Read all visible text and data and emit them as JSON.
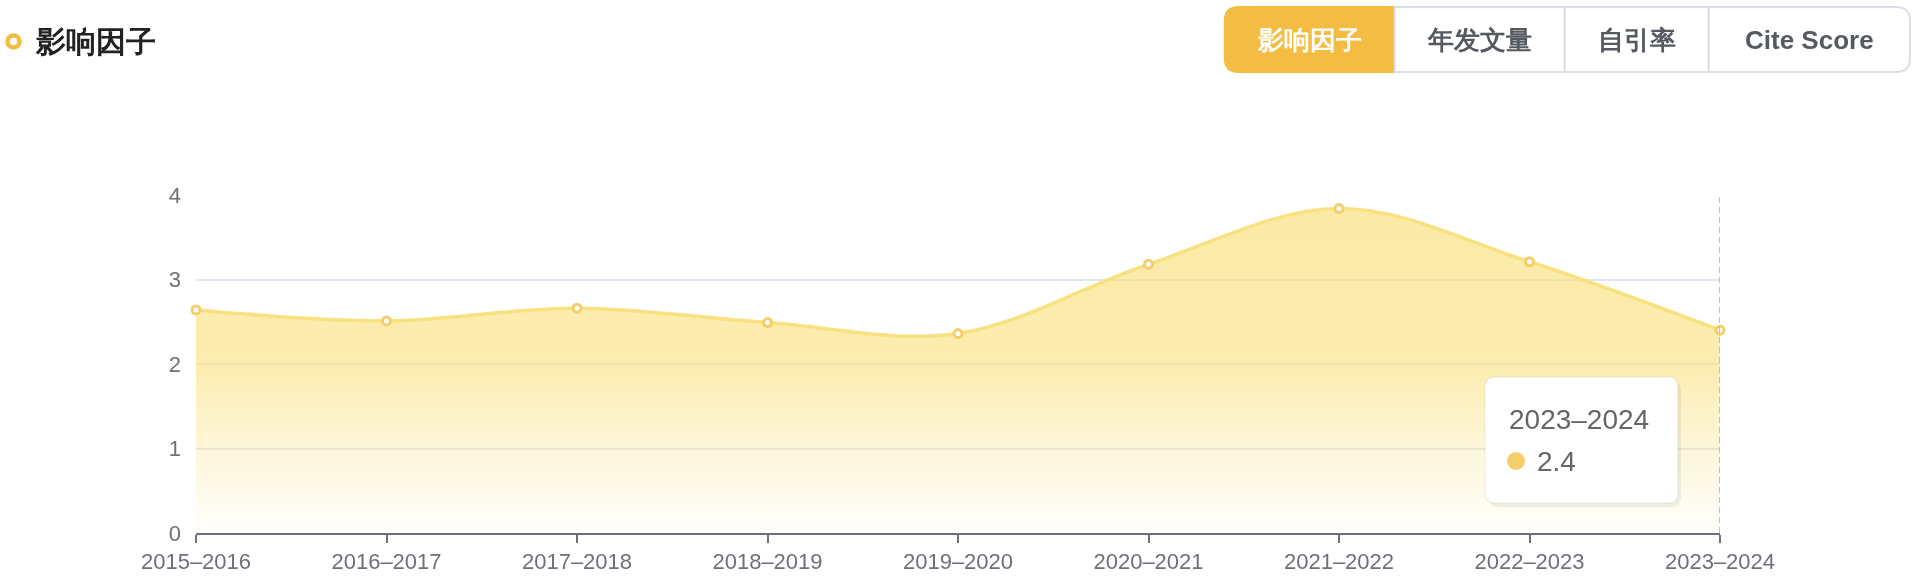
{
  "chart_data": {
    "type": "area",
    "title": "影响因子",
    "categories": [
      "2015–2016",
      "2016–2017",
      "2017–2018",
      "2018–2019",
      "2019–2020",
      "2020–2021",
      "2021–2022",
      "2022–2023",
      "2023–2024"
    ],
    "values": [
      2.64,
      2.51,
      2.66,
      2.49,
      2.36,
      3.18,
      3.84,
      3.21,
      2.4
    ],
    "color": "#fae17f",
    "ylim": [
      0,
      4
    ],
    "yticks": [
      0,
      1,
      2,
      3,
      4
    ],
    "grid": "y",
    "marker": "circle",
    "line_style": "solid",
    "ref_lines": [
      {
        "axis": "x",
        "value": "2023–2024",
        "color": "#a9adba",
        "line_style": "dashed"
      }
    ],
    "annotations": [
      "影响因子",
      "年发文量",
      "自引率",
      "Cite Score",
      "2023–2024\n2.4"
    ]
  }
}
